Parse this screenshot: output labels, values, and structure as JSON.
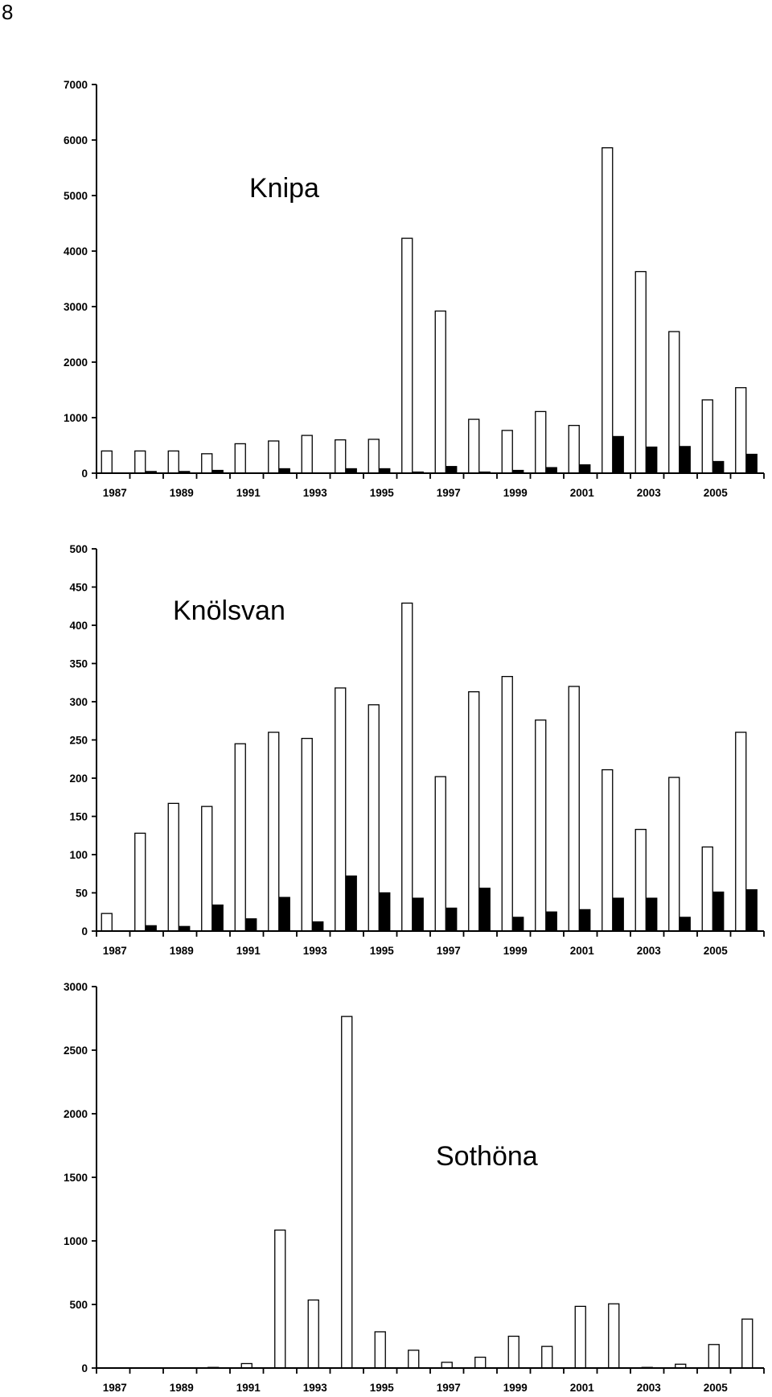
{
  "page": {
    "number": "8"
  },
  "chart_data": [
    {
      "type": "bar",
      "title": "Knipa",
      "xlabel": "",
      "ylabel": "",
      "ylim": [
        0,
        7000
      ],
      "yticks": [
        0,
        1000,
        2000,
        3000,
        4000,
        5000,
        6000,
        7000
      ],
      "categories": [
        "1987",
        "1988",
        "1989",
        "1990",
        "1991",
        "1992",
        "1993",
        "1994",
        "1995",
        "1996",
        "1997",
        "1998",
        "1999",
        "2000",
        "2001",
        "2002",
        "2003",
        "2004",
        "2005",
        "2006"
      ],
      "x_tick_labels": [
        "1987",
        "",
        "1989",
        "",
        "1991",
        "",
        "1993",
        "",
        "1995",
        "",
        "1997",
        "",
        "1999",
        "",
        "2001",
        "",
        "2003",
        "",
        "2005",
        ""
      ],
      "series": [
        {
          "fill": "#ffffff",
          "values": [
            400,
            400,
            400,
            350,
            530,
            580,
            680,
            600,
            610,
            4230,
            2920,
            970,
            770,
            1110,
            860,
            5860,
            3630,
            2550,
            1320,
            1540
          ]
        },
        {
          "fill": "#000000",
          "values": [
            0,
            30,
            30,
            50,
            0,
            80,
            0,
            80,
            80,
            20,
            120,
            20,
            50,
            100,
            150,
            660,
            470,
            480,
            210,
            340
          ]
        }
      ],
      "grid": false,
      "legend": "none"
    },
    {
      "type": "bar",
      "title": "Knölsvan",
      "xlabel": "",
      "ylabel": "",
      "ylim": [
        0,
        500
      ],
      "yticks": [
        0,
        50,
        100,
        150,
        200,
        250,
        300,
        350,
        400,
        450,
        500
      ],
      "categories": [
        "1987",
        "1988",
        "1989",
        "1990",
        "1991",
        "1992",
        "1993",
        "1994",
        "1995",
        "1996",
        "1997",
        "1998",
        "1999",
        "2000",
        "2001",
        "2002",
        "2003",
        "2004",
        "2005",
        "2006"
      ],
      "x_tick_labels": [
        "1987",
        "",
        "1989",
        "",
        "1991",
        "",
        "1993",
        "",
        "1995",
        "",
        "1997",
        "",
        "1999",
        "",
        "2001",
        "",
        "2003",
        "",
        "2005",
        ""
      ],
      "series": [
        {
          "fill": "#ffffff",
          "values": [
            23,
            128,
            167,
            163,
            245,
            260,
            252,
            318,
            296,
            429,
            202,
            313,
            333,
            276,
            320,
            211,
            133,
            201,
            110,
            260
          ]
        },
        {
          "fill": "#000000",
          "values": [
            0,
            7,
            6,
            34,
            16,
            44,
            12,
            72,
            50,
            43,
            30,
            56,
            18,
            25,
            28,
            43,
            43,
            18,
            51,
            54
          ]
        }
      ],
      "grid": false,
      "legend": "none"
    },
    {
      "type": "bar",
      "title": "Sothöna",
      "xlabel": "",
      "ylabel": "",
      "ylim": [
        0,
        3000
      ],
      "yticks": [
        0,
        500,
        1000,
        1500,
        2000,
        2500,
        3000
      ],
      "categories": [
        "1987",
        "1988",
        "1989",
        "1990",
        "1991",
        "1992",
        "1993",
        "1994",
        "1995",
        "1996",
        "1997",
        "1998",
        "1999",
        "2000",
        "2001",
        "2002",
        "2003",
        "2004",
        "2005",
        "2006"
      ],
      "x_tick_labels": [
        "1987",
        "",
        "1989",
        "",
        "1991",
        "",
        "1993",
        "",
        "1995",
        "",
        "1997",
        "",
        "1999",
        "",
        "2001",
        "",
        "2003",
        "",
        "2005",
        ""
      ],
      "series": [
        {
          "fill": "#ffffff",
          "values": [
            0,
            0,
            0,
            5,
            35,
            1085,
            535,
            2765,
            285,
            140,
            45,
            85,
            250,
            170,
            485,
            505,
            5,
            30,
            185,
            385
          ]
        }
      ],
      "grid": false,
      "legend": "none"
    }
  ]
}
